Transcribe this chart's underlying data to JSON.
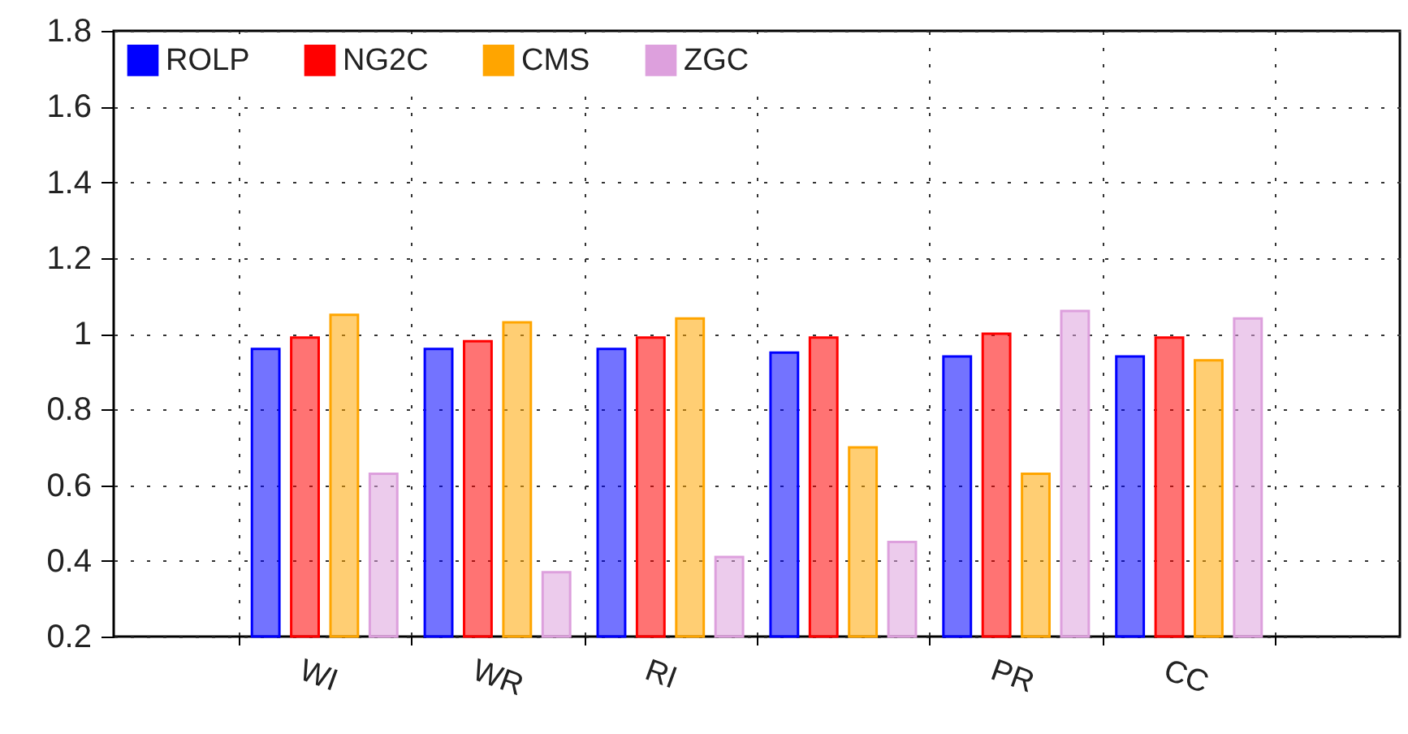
{
  "chart_data": {
    "type": "bar",
    "categories": [
      "WI",
      "WR",
      "RI",
      null,
      "PR",
      "CC"
    ],
    "series": [
      {
        "name": "ROLP",
        "color": "#0000ff",
        "values": [
          0.96,
          0.96,
          0.96,
          0.95,
          0.94,
          0.94
        ]
      },
      {
        "name": "NG2C",
        "color": "#ff0000",
        "values": [
          0.99,
          0.98,
          0.99,
          0.99,
          1.0,
          0.99
        ]
      },
      {
        "name": "CMS",
        "color": "#ffa500",
        "values": [
          1.05,
          1.03,
          1.04,
          0.7,
          0.63,
          0.93
        ]
      },
      {
        "name": "ZGC",
        "color": "#dda0dd",
        "values": [
          0.63,
          0.37,
          0.41,
          0.45,
          1.06,
          1.04
        ]
      }
    ],
    "ylim": [
      0.2,
      1.8
    ],
    "yticks": [
      0.2,
      0.4,
      0.6,
      0.8,
      1,
      1.2,
      1.4,
      1.6,
      1.8
    ],
    "grid": true,
    "legend": "top left"
  }
}
